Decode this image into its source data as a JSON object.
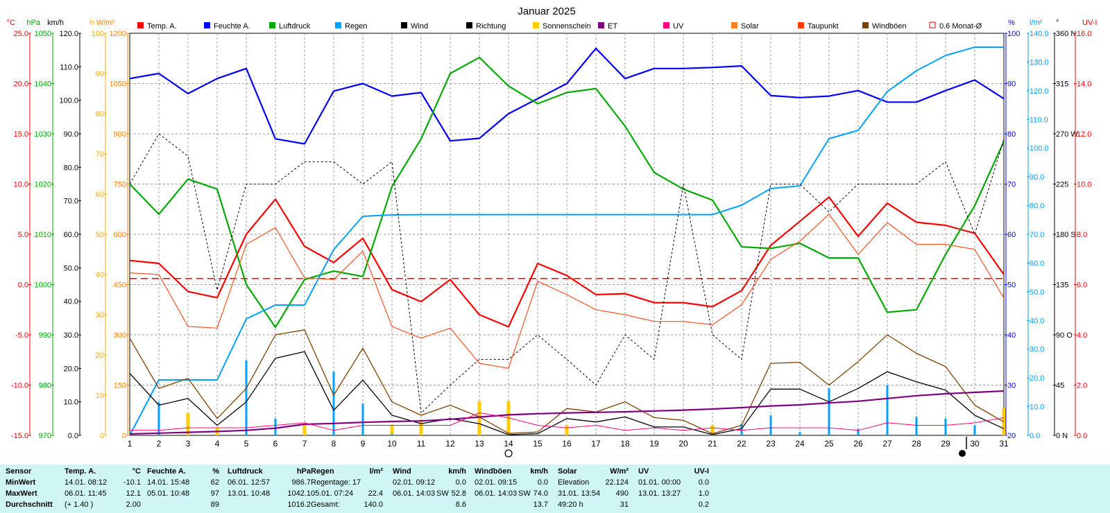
{
  "chart_data": {
    "type": "line",
    "title": "Januar 2025",
    "x": [
      1,
      2,
      3,
      4,
      5,
      6,
      7,
      8,
      9,
      10,
      11,
      12,
      13,
      14,
      15,
      16,
      17,
      18,
      19,
      20,
      21,
      22,
      23,
      24,
      25,
      26,
      27,
      28,
      29,
      30,
      31
    ],
    "legend": [
      {
        "name": "Temp. A.",
        "color": "#ff0000"
      },
      {
        "name": "Feuchte A.",
        "color": "#0000ff"
      },
      {
        "name": "Luftdruck",
        "color": "#00aa00"
      },
      {
        "name": "Regen",
        "color": "#00a0ff"
      },
      {
        "name": "Wind",
        "color": "#000000"
      },
      {
        "name": "Richtung",
        "color": "#000000"
      },
      {
        "name": "Sonnenschein",
        "color": "#ffcc00"
      },
      {
        "name": "ET",
        "color": "#800080"
      },
      {
        "name": "UV",
        "color": "#ff0080"
      },
      {
        "name": "Solar",
        "color": "#ff8020"
      },
      {
        "name": "Taupunkt",
        "color": "#ff4000"
      },
      {
        "name": "Windböen",
        "color": "#804000"
      },
      {
        "name": "0.6 Monat-Ø",
        "color": "#ff0000"
      }
    ],
    "axes": {
      "temp": {
        "unit": "°C",
        "color": "#ff0000",
        "min": -15,
        "max": 25,
        "ticks": [
          "25.0",
          "20.0",
          "15.0",
          "10.0",
          "5.0",
          "0.0",
          "-5.0",
          "-10.0",
          "-15.0"
        ]
      },
      "pressure": {
        "unit": "hPa",
        "color": "#00aa00",
        "min": 970,
        "max": 1050,
        "ticks": [
          "1050",
          "1040",
          "1030",
          "1020",
          "1010",
          "1000",
          "990",
          "980",
          "970"
        ]
      },
      "wind": {
        "unit": "km/h",
        "color": "#000000",
        "min": 0,
        "max": 120,
        "ticks": [
          "120.0",
          "110.0",
          "100.0",
          "90.0",
          "80.0",
          "70.0",
          "60.0",
          "50.0",
          "40.0",
          "30.0",
          "20.0",
          "10.0",
          "0.0"
        ]
      },
      "sun": {
        "unit": "h",
        "color": "#ffaa00",
        "min": 0,
        "max": 100,
        "ticks": [
          "100",
          "90",
          "80",
          "70",
          "60",
          "50",
          "40",
          "30",
          "20",
          "10",
          "0"
        ]
      },
      "solar": {
        "unit": "W/m²",
        "color": "#ff8000",
        "min": 0,
        "max": 1200,
        "ticks": [
          "1200",
          "1050",
          "900",
          "750",
          "600",
          "450",
          "300",
          "150",
          "0"
        ]
      },
      "humidity": {
        "unit": "%",
        "color": "#0000ff",
        "min": 20,
        "max": 100,
        "ticks": [
          "100",
          "90",
          "80",
          "70",
          "60",
          "50",
          "40",
          "30",
          "20"
        ]
      },
      "rain": {
        "unit": "l/m²",
        "color": "#00a0ff",
        "min": 0,
        "max": 145,
        "ticks": [
          "140.0",
          "130.0",
          "120.0",
          "110.0",
          "100.0",
          "90.0",
          "80.0",
          "70.0",
          "60.0",
          "50.0",
          "40.0",
          "30.0",
          "20.0",
          "10.0",
          "0.0"
        ]
      },
      "direction": {
        "unit": "°",
        "color": "#000000",
        "min": 0,
        "max": 360,
        "ticks": [
          "360 N",
          "315",
          "270 W",
          "225",
          "180 S",
          "135",
          "90 O",
          "45",
          "0 N"
        ]
      },
      "uv": {
        "unit": "UV-I",
        "color": "#ff0000",
        "min": 0,
        "max": 16,
        "ticks": [
          "16.0",
          "14.0",
          "12.0",
          "10.0",
          "8.0",
          "6.0",
          "4.0",
          "2.0",
          "0.0"
        ]
      }
    },
    "series": [
      {
        "name": "Temp. A.",
        "axis": "temp",
        "color": "#ff0000",
        "width": 2.2,
        "values": [
          2.4,
          2.1,
          -0.7,
          -1.3,
          5.0,
          8.5,
          3.8,
          2.2,
          4.6,
          -0.5,
          -1.7,
          0.5,
          -3.0,
          -4.2,
          2.1,
          0.9,
          -1.0,
          -0.9,
          -1.8,
          -1.8,
          -2.2,
          -0.6,
          3.9,
          6.3,
          8.7,
          4.8,
          8.1,
          6.2,
          5.9,
          5.1,
          1.0
        ]
      },
      {
        "name": "Feuchte A.",
        "axis": "humidity",
        "color": "#0000ff",
        "width": 2.2,
        "values": [
          91,
          92,
          88,
          91,
          93,
          79,
          78,
          88.5,
          90,
          87.5,
          88.2,
          78.6,
          79.1,
          84,
          87,
          90,
          97,
          91,
          93,
          93,
          93.2,
          93.5,
          87.6,
          87.2,
          87.5,
          88.6,
          86.3,
          86.3,
          88.6,
          90.7,
          87
        ]
      },
      {
        "name": "Luftdruck",
        "axis": "pressure",
        "color": "#00aa00",
        "width": 2.2,
        "values": [
          1020,
          1014,
          1021,
          1019,
          1000,
          991.5,
          1001,
          1002.7,
          1001.6,
          1019.5,
          1029,
          1042,
          1045.2,
          1039.5,
          1036,
          1038.2,
          1039,
          1031.5,
          1022.3,
          1019,
          1016.8,
          1007.5,
          1007.2,
          1008.2,
          1005.3,
          1005.3,
          994.5,
          995,
          1006,
          1015.7,
          1028.5
        ]
      },
      {
        "name": "Regen",
        "axis": "rain",
        "color": "#00a0ff",
        "width": 2.0,
        "values": [
          0,
          20,
          20,
          20,
          42,
          47,
          47,
          67,
          79,
          79.5,
          79.6,
          79.6,
          79.6,
          79.6,
          79.6,
          79.6,
          79.6,
          79.6,
          79.6,
          79.6,
          79.6,
          83,
          89,
          90,
          107,
          110,
          124,
          131.5,
          137,
          140,
          140
        ]
      },
      {
        "name": "Solar",
        "axis": "solar",
        "color": "#ff5020",
        "width": 1.2,
        "values": [
          485,
          480,
          325,
          320,
          570,
          620,
          470,
          465,
          550,
          325,
          290,
          320,
          215,
          200,
          460,
          420,
          375,
          360,
          340,
          340,
          330,
          390,
          525,
          580,
          660,
          540,
          635,
          570,
          570,
          555,
          410
        ]
      },
      {
        "name": "Windböen",
        "axis": "wind",
        "color": "#804000",
        "width": 1.3,
        "values": [
          29,
          14,
          17,
          5,
          14,
          30,
          31.5,
          12,
          26,
          10,
          6,
          9,
          5.5,
          0.6,
          1,
          8,
          7,
          10,
          5.3,
          4.5,
          0.5,
          3,
          21.5,
          21.8,
          15,
          22,
          30,
          24.5,
          20.5,
          9,
          4
        ]
      },
      {
        "name": "Wind",
        "axis": "wind",
        "color": "#000000",
        "width": 1.3,
        "values": [
          18.5,
          9,
          11,
          3,
          10,
          23,
          25,
          7.5,
          16.5,
          6,
          3.5,
          5,
          3.5,
          0.2,
          0.5,
          5,
          4,
          5.5,
          2.5,
          2.5,
          0.2,
          2,
          13.8,
          13.8,
          10,
          14,
          19,
          16,
          13.5,
          6,
          2
        ]
      },
      {
        "name": "ET",
        "axis": "rain",
        "color": "#800080",
        "width": 2.2,
        "values": [
          0.5,
          0.8,
          1.1,
          1.4,
          1.8,
          2.6,
          4.0,
          4.3,
          4.7,
          5.0,
          5.2,
          5.8,
          6.6,
          7.4,
          7.8,
          8.1,
          8.3,
          8.5,
          8.8,
          9.1,
          9.5,
          10.0,
          10.6,
          11.0,
          11.7,
          12.3,
          13.3,
          14.3,
          15.0,
          15.5,
          16.0
        ]
      },
      {
        "name": "UV",
        "axis": "uv",
        "color": "#ff0080",
        "width": 1.0,
        "values": [
          0.2,
          0.2,
          0.3,
          0.3,
          0.3,
          0.4,
          0.5,
          0.2,
          0.4,
          0.4,
          0.4,
          0.4,
          0.9,
          0.7,
          0.4,
          0.3,
          0.4,
          0.2,
          0.3,
          0.2,
          0.3,
          0.2,
          0.3,
          0.3,
          0.3,
          0.2,
          0.5,
          0.4,
          0.4,
          0.5,
          0.7
        ]
      },
      {
        "name": "Richtung",
        "axis": "direction",
        "color": "#000000",
        "width": 1.0,
        "dash": "3,3",
        "values": [
          225,
          270,
          250,
          130,
          225,
          225,
          245,
          245,
          225,
          245,
          20,
          45,
          68,
          68,
          90,
          68,
          45,
          90,
          68,
          225,
          90,
          68,
          225,
          225,
          200,
          225,
          225,
          225,
          245,
          180,
          265
        ]
      }
    ],
    "monat_avg": {
      "axis": "temp",
      "value": 0.6,
      "label": "0.6 Monat-Ø"
    },
    "bars": {
      "rain": {
        "axis": "wind",
        "color": "#00a0ff",
        "values": [
          0,
          10,
          0,
          0,
          22.4,
          5,
          0,
          19,
          9.5,
          0.5,
          0.1,
          0,
          0,
          0,
          0,
          0,
          0,
          0,
          0,
          0,
          0,
          3.5,
          6,
          1,
          14,
          2,
          15,
          5.5,
          5,
          3,
          0
        ]
      },
      "sunshine": {
        "axis": "sun",
        "color": "#ffcc00",
        "values": [
          0,
          0,
          5.5,
          2,
          0,
          0,
          2.5,
          0,
          0,
          2.5,
          4,
          0,
          8.5,
          8.5,
          0,
          2.5,
          0,
          0,
          0,
          0,
          2.5,
          0,
          0,
          0,
          0,
          0,
          0,
          0,
          0,
          0,
          6.8
        ]
      }
    },
    "markers": {
      "new_moon_day": 14,
      "full_moon_day": 30
    }
  },
  "stats": {
    "headers": {
      "sensor": "Sensor",
      "min": "MinWert",
      "max": "MaxWert",
      "avg": "Durchschnitt"
    },
    "temp": {
      "title": "Temp. A.",
      "unit": "°C",
      "min_time": "14.01. 08:12",
      "min_val": "-10.1",
      "max_time": "06.01. 11:45",
      "max_val": "12.1",
      "avg_note": "(+ 1.40 )",
      "avg_val": "2.00"
    },
    "humidity": {
      "title": "Feuchte A.",
      "unit": "%",
      "min_time": "14.01. 15:48",
      "min_val": "62",
      "max_time": "05.01. 10:48",
      "max_val": "97",
      "avg_val": "89"
    },
    "pressure": {
      "title": "Luftdruck",
      "unit": "hPa",
      "min_time": "06.01. 12:57",
      "min_val": "986.7",
      "max_time": "13.01. 10:48",
      "max_val": "1042.1",
      "avg_val": "1016.2"
    },
    "rain": {
      "title": "Regen",
      "unit": "l/m²",
      "min_time": "Regentage: 17",
      "min_val": "",
      "max_time": "05.01. 07:24",
      "max_val": "22.4",
      "avg_time": "Gesamt:",
      "avg_val": "140.0"
    },
    "wind": {
      "title": "Wind",
      "unit": "km/h",
      "min_time": "02.01. 09:12",
      "min_val": "0.0",
      "max_time": "06.01. 14:03",
      "max_dir": "SW",
      "max_val": "52.8",
      "avg_val": "8.6"
    },
    "gust": {
      "title": "Windböen",
      "unit": "km/h",
      "min_time": "02.01. 09:15",
      "min_val": "0.0",
      "max_time": "06.01. 14:03",
      "max_dir": "SW",
      "max_val": "74.0",
      "avg_val": "13.7"
    },
    "solar": {
      "title": "Solar",
      "unit": "W/m²",
      "min_time": "Elevation",
      "min_val": "22.124",
      "max_time": "31.01. 13:54",
      "max_val": "490",
      "avg_time": "49:20 h",
      "avg_val": "31"
    },
    "uv": {
      "title": "UV",
      "unit": "UV-I",
      "min_time": "01.01. 00:00",
      "min_val": "0.0",
      "max_time": "13.01. 13:27",
      "max_val": "1.0",
      "avg_val": "0.2"
    }
  }
}
